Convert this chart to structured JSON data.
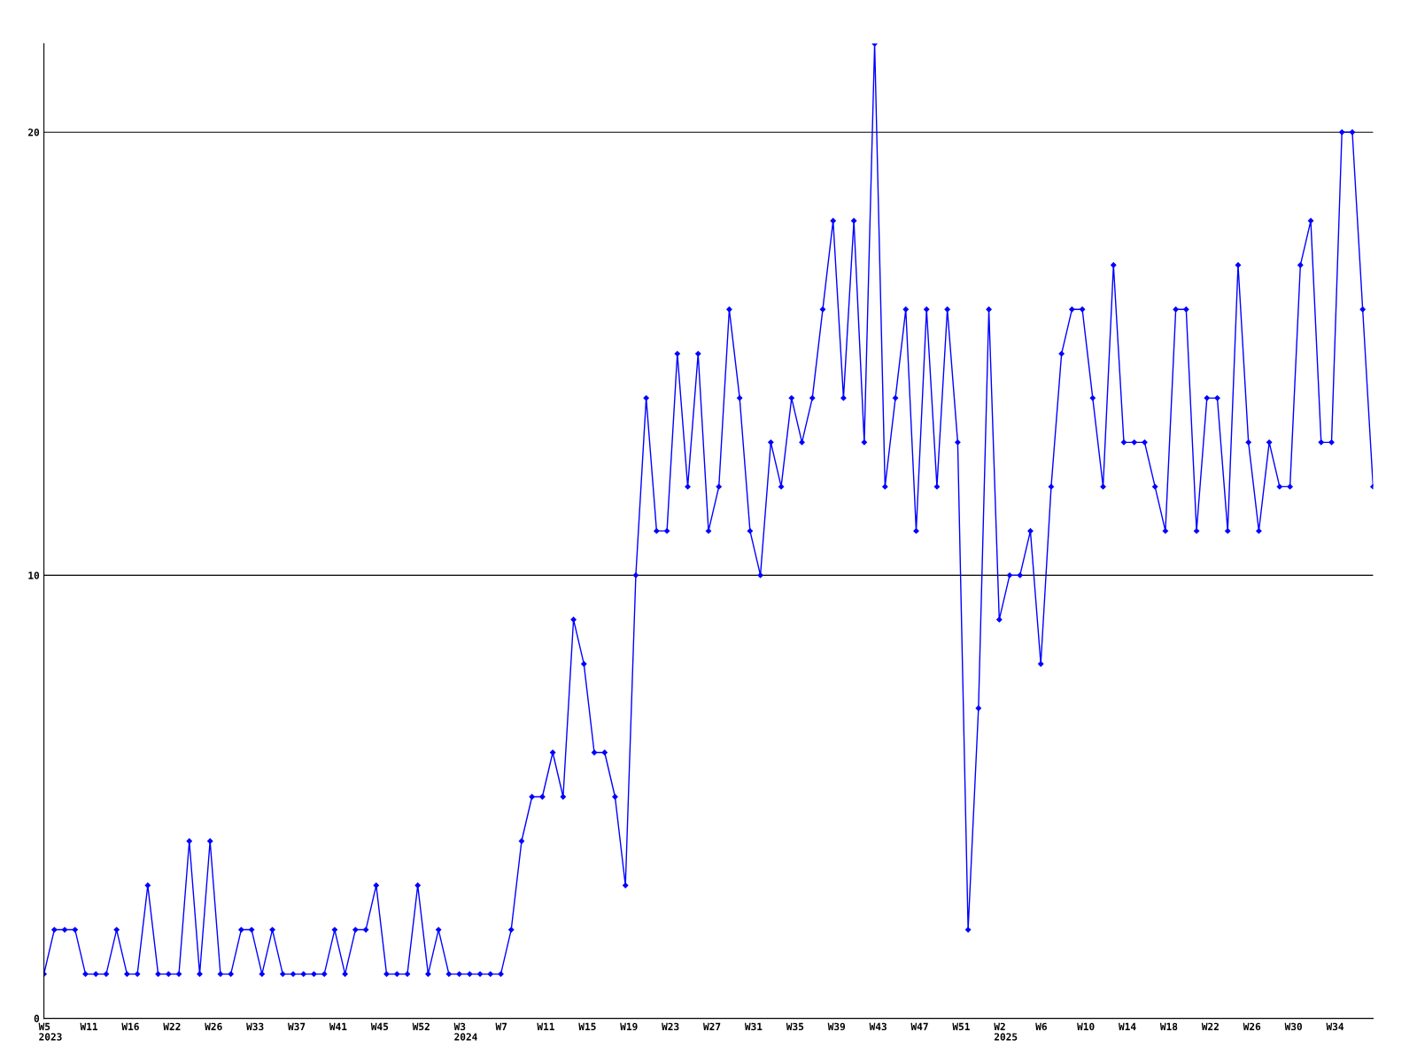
{
  "chart_data": {
    "type": "line",
    "categories": [
      "W5\n2023",
      null,
      null,
      null,
      "W11",
      null,
      null,
      null,
      "W16",
      null,
      null,
      null,
      "W22",
      null,
      null,
      null,
      "W26",
      null,
      null,
      null,
      "W33",
      null,
      null,
      null,
      "W37",
      null,
      null,
      null,
      "W41",
      null,
      null,
      null,
      "W45",
      null,
      null,
      null,
      "W52",
      null,
      null,
      null,
      "W3\n2024",
      null,
      null,
      null,
      "W7",
      null,
      null,
      null,
      "W11",
      null,
      null,
      null,
      "W15",
      null,
      null,
      null,
      "W19",
      null,
      null,
      null,
      "W23",
      null,
      null,
      null,
      "W27",
      null,
      null,
      null,
      "W31",
      null,
      null,
      null,
      "W35",
      null,
      null,
      null,
      "W39",
      null,
      null,
      null,
      "W43",
      null,
      null,
      null,
      "W47",
      null,
      null,
      null,
      "W51",
      null,
      null,
      null,
      "W2\n2025",
      null,
      null,
      null,
      "W6",
      null,
      null,
      null,
      "W10",
      null,
      null,
      null,
      "W14",
      null,
      null,
      null,
      "W18",
      null,
      null,
      null,
      "W22",
      null,
      null,
      null,
      "W26",
      null,
      null,
      null,
      "W30",
      null,
      null,
      null,
      "W34",
      null,
      null,
      null,
      null
    ],
    "series": [
      {
        "color": "#0000ff",
        "values": [
          1,
          2,
          2,
          2,
          1,
          1,
          1,
          2,
          1,
          1,
          3,
          1,
          1,
          1,
          4,
          1,
          4,
          1,
          1,
          2,
          2,
          1,
          2,
          1,
          1,
          1,
          1,
          1,
          2,
          1,
          2,
          2,
          3,
          1,
          1,
          1,
          3,
          1,
          2,
          1,
          1,
          1,
          1,
          1,
          1,
          2,
          4,
          5,
          5,
          6,
          5,
          9,
          8,
          6,
          6,
          5,
          3,
          10,
          14,
          11,
          11,
          15,
          12,
          15,
          11,
          12,
          16,
          14,
          11,
          10,
          13,
          12,
          14,
          13,
          14,
          16,
          18,
          14,
          18,
          13,
          22,
          12,
          14,
          16,
          11,
          16,
          12,
          16,
          13,
          2,
          7,
          16,
          9,
          10,
          10,
          11,
          8,
          12,
          15,
          16,
          16,
          14,
          12,
          17,
          13,
          13,
          13,
          12,
          11,
          16,
          16,
          11,
          14,
          14,
          11,
          17,
          13,
          11,
          13,
          12,
          12,
          17,
          18,
          13,
          13,
          20,
          20,
          16,
          12
        ]
      }
    ],
    "ylim": [
      0,
      22
    ],
    "yticks": [
      0,
      10,
      20
    ],
    "grid": "y",
    "marker": "diamond",
    "line_style": "solid"
  }
}
